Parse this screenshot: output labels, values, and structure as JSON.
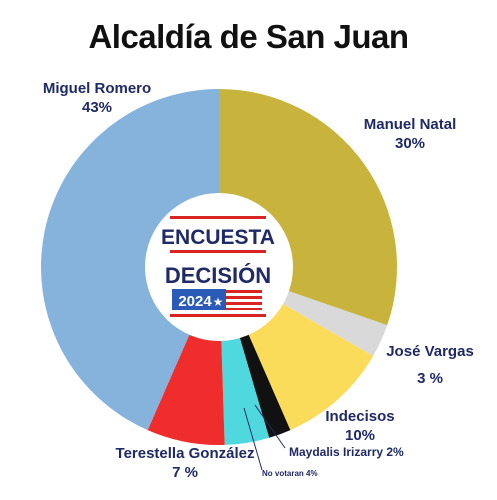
{
  "title": "Alcaldía de San Juan",
  "logo": {
    "line1": "ENCUESTA",
    "line2": "DECISIÓN",
    "year": "2024",
    "star": "★"
  },
  "chart_data": {
    "type": "pie",
    "title": "Alcaldía de San Juan",
    "slices": [
      {
        "label": "Manuel Natal",
        "value": 30,
        "value_label": "30%",
        "color": "#c8b43c"
      },
      {
        "label": "José Vargas",
        "value": 3,
        "value_label": "3 %",
        "color": "#d9d9d9"
      },
      {
        "label": "Indecisos",
        "value": 10,
        "value_label": "10%",
        "color": "#fbdc5a"
      },
      {
        "label": "Maydalis Irizarry 2%",
        "value": 2,
        "value_label": "",
        "color": "#111111"
      },
      {
        "label": "No votaran 4%",
        "value": 4,
        "value_label": "",
        "color": "#4fd8de"
      },
      {
        "label": "Terestella González",
        "value": 7,
        "value_label": "7 %",
        "color": "#f02d2d"
      },
      {
        "label": "Miguel Romero",
        "value": 43,
        "value_label": "43%",
        "color": "#86b3dc"
      }
    ]
  }
}
